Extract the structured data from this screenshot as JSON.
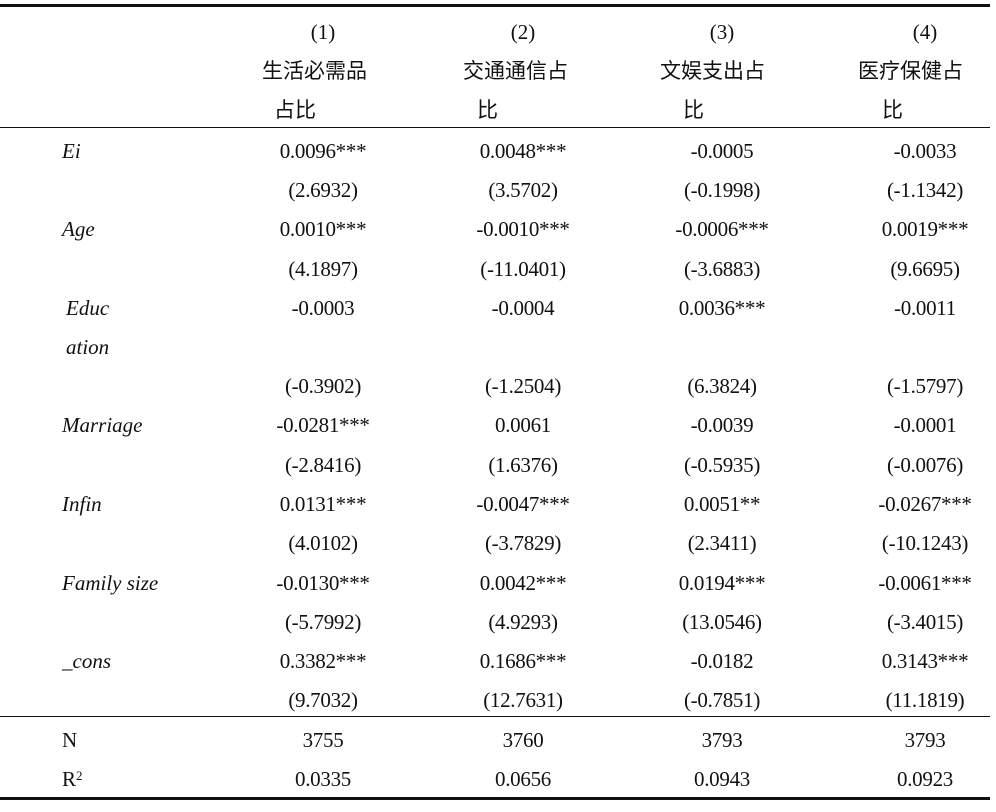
{
  "header": {
    "col1": {
      "num": "(1)",
      "line1": "生活必需品",
      "line2": "占比"
    },
    "col2": {
      "num": "(2)",
      "line1": "交通通信占",
      "line2": "比"
    },
    "col3": {
      "num": "(3)",
      "line1": "文娱支出占",
      "line2": "比"
    },
    "col4": {
      "num": "(4)",
      "line1": "医疗保健占",
      "line2": "比"
    }
  },
  "rows": {
    "ei": {
      "label": "Ei",
      "coef": [
        "0.0096***",
        "0.0048***",
        "-0.0005",
        "-0.0033"
      ],
      "t": [
        "(2.6932)",
        "(3.5702)",
        "(-0.1998)",
        "(-1.1342)"
      ]
    },
    "age": {
      "label": "Age",
      "coef": [
        "0.0010***",
        "-0.0010***",
        "-0.0006***",
        "0.0019***"
      ],
      "t": [
        "(4.1897)",
        "(-11.0401)",
        "(-3.6883)",
        "(9.6695)"
      ]
    },
    "education": {
      "label1": "Educ",
      "label2": "ation",
      "coef": [
        "-0.0003",
        "-0.0004",
        "0.0036***",
        "-0.0011"
      ],
      "t": [
        "(-0.3902)",
        "(-1.2504)",
        "(6.3824)",
        "(-1.5797)"
      ]
    },
    "marriage": {
      "label": "Marriage",
      "coef": [
        "-0.0281***",
        "0.0061",
        "-0.0039",
        "-0.0001"
      ],
      "t": [
        "(-2.8416)",
        "(1.6376)",
        "(-0.5935)",
        "(-0.0076)"
      ]
    },
    "infin": {
      "label": "Infin",
      "coef": [
        "0.0131***",
        "-0.0047***",
        "0.0051**",
        "-0.0267***"
      ],
      "t": [
        "(4.0102)",
        "(-3.7829)",
        "(2.3411)",
        "(-10.1243)"
      ]
    },
    "family_size": {
      "label": "Family size",
      "coef": [
        "-0.0130***",
        "0.0042***",
        "0.0194***",
        "-0.0061***"
      ],
      "t": [
        "(-5.7992)",
        "(4.9293)",
        "(13.0546)",
        "(-3.4015)"
      ]
    },
    "cons": {
      "label": "_cons",
      "coef": [
        "0.3382***",
        "0.1686***",
        "-0.0182",
        "0.3143***"
      ],
      "t": [
        "(9.7032)",
        "(12.7631)",
        "(-0.7851)",
        "(11.1819)"
      ]
    }
  },
  "footer": {
    "n": {
      "label": "N",
      "values": [
        "3755",
        "3760",
        "3793",
        "3793"
      ]
    },
    "r2": {
      "label": "R",
      "sup": "2",
      "values": [
        "0.0335",
        "0.0656",
        "0.0943",
        "0.0923"
      ]
    }
  }
}
